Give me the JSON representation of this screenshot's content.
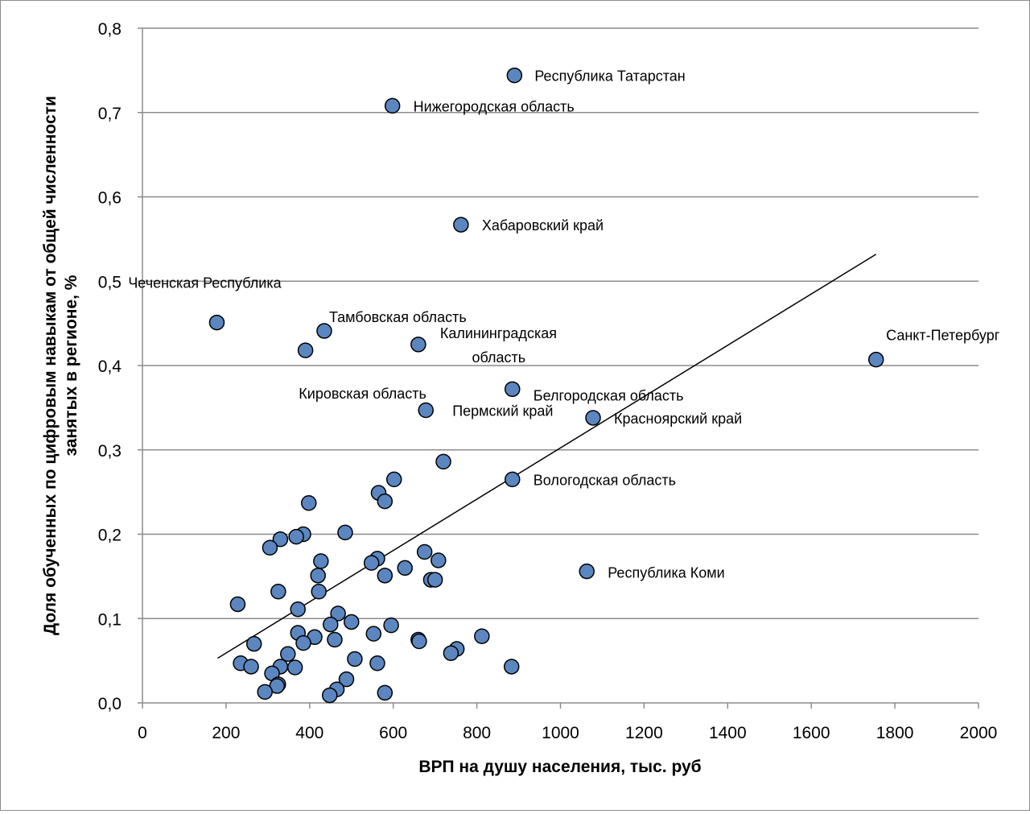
{
  "chart_data": {
    "type": "scatter",
    "title": "",
    "xlabel": "ВРП на душу населения, тыс. руб",
    "ylabel": "Доля обученных по цифровым навыкам от общей численности занятых в регионе, %",
    "xlim": [
      0,
      2000
    ],
    "ylim": [
      0,
      0.8
    ],
    "x_ticks": [
      0,
      200,
      400,
      600,
      800,
      1000,
      1200,
      1400,
      1600,
      1800,
      2000
    ],
    "y_ticks": [
      0,
      0.1,
      0.2,
      0.3,
      0.4,
      0.5,
      0.6,
      0.7,
      0.8
    ],
    "x_tick_labels": [
      "0",
      "200",
      "400",
      "600",
      "800",
      "1000",
      "1200",
      "1400",
      "1600",
      "1800",
      "2000"
    ],
    "y_tick_labels": [
      "0,0",
      "0,1",
      "0,2",
      "0,3",
      "0,4",
      "0,5",
      "0,6",
      "0,7",
      "0,8"
    ],
    "grid": "horizontal",
    "legend": "none",
    "marker_color": "#5b86c0",
    "marker_edge_color": "#000000",
    "trendline": {
      "x": [
        180,
        1755
      ],
      "y": [
        0.053,
        0.532
      ]
    },
    "points": [
      {
        "x": 890,
        "y": 0.744,
        "label": "Республика Татарстан"
      },
      {
        "x": 598,
        "y": 0.708,
        "label": "Нижегородская область"
      },
      {
        "x": 762,
        "y": 0.567,
        "label": "Хабаровский край"
      },
      {
        "x": 178,
        "y": 0.451,
        "label": "Чеченская Республика"
      },
      {
        "x": 435,
        "y": 0.441,
        "label": "Тамбовская область"
      },
      {
        "x": 660,
        "y": 0.425,
        "label": "Калининградская область"
      },
      {
        "x": 1755,
        "y": 0.407,
        "label": "Санкт-Петербург"
      },
      {
        "x": 390,
        "y": 0.418,
        "label": "Кировская область"
      },
      {
        "x": 885,
        "y": 0.372,
        "label": "Белгородская область"
      },
      {
        "x": 678,
        "y": 0.347,
        "label": "Пермский край"
      },
      {
        "x": 1078,
        "y": 0.338,
        "label": "Красноярский край"
      },
      {
        "x": 885,
        "y": 0.265,
        "label": "Вологодская область"
      },
      {
        "x": 1063,
        "y": 0.156,
        "label": "Республика Коми"
      },
      {
        "x": 720,
        "y": 0.286
      },
      {
        "x": 602,
        "y": 0.265
      },
      {
        "x": 565,
        "y": 0.249
      },
      {
        "x": 580,
        "y": 0.239
      },
      {
        "x": 398,
        "y": 0.237
      },
      {
        "x": 485,
        "y": 0.202
      },
      {
        "x": 385,
        "y": 0.2
      },
      {
        "x": 368,
        "y": 0.197
      },
      {
        "x": 330,
        "y": 0.194
      },
      {
        "x": 305,
        "y": 0.184
      },
      {
        "x": 675,
        "y": 0.179
      },
      {
        "x": 562,
        "y": 0.171
      },
      {
        "x": 708,
        "y": 0.169
      },
      {
        "x": 427,
        "y": 0.168
      },
      {
        "x": 548,
        "y": 0.166
      },
      {
        "x": 628,
        "y": 0.16
      },
      {
        "x": 420,
        "y": 0.151
      },
      {
        "x": 580,
        "y": 0.151
      },
      {
        "x": 690,
        "y": 0.146
      },
      {
        "x": 700,
        "y": 0.146
      },
      {
        "x": 325,
        "y": 0.132
      },
      {
        "x": 422,
        "y": 0.132
      },
      {
        "x": 228,
        "y": 0.117
      },
      {
        "x": 372,
        "y": 0.111
      },
      {
        "x": 468,
        "y": 0.106
      },
      {
        "x": 500,
        "y": 0.096
      },
      {
        "x": 450,
        "y": 0.093
      },
      {
        "x": 595,
        "y": 0.092
      },
      {
        "x": 372,
        "y": 0.083
      },
      {
        "x": 553,
        "y": 0.082
      },
      {
        "x": 812,
        "y": 0.079
      },
      {
        "x": 412,
        "y": 0.078
      },
      {
        "x": 460,
        "y": 0.075
      },
      {
        "x": 660,
        "y": 0.075
      },
      {
        "x": 662,
        "y": 0.073
      },
      {
        "x": 385,
        "y": 0.071
      },
      {
        "x": 267,
        "y": 0.07
      },
      {
        "x": 752,
        "y": 0.064
      },
      {
        "x": 738,
        "y": 0.059
      },
      {
        "x": 348,
        "y": 0.058
      },
      {
        "x": 508,
        "y": 0.052
      },
      {
        "x": 235,
        "y": 0.047
      },
      {
        "x": 562,
        "y": 0.047
      },
      {
        "x": 260,
        "y": 0.043
      },
      {
        "x": 330,
        "y": 0.043
      },
      {
        "x": 365,
        "y": 0.042
      },
      {
        "x": 883,
        "y": 0.043
      },
      {
        "x": 310,
        "y": 0.035
      },
      {
        "x": 488,
        "y": 0.028
      },
      {
        "x": 325,
        "y": 0.022
      },
      {
        "x": 322,
        "y": 0.02
      },
      {
        "x": 465,
        "y": 0.016
      },
      {
        "x": 293,
        "y": 0.013
      },
      {
        "x": 580,
        "y": 0.012
      },
      {
        "x": 448,
        "y": 0.009
      }
    ]
  }
}
